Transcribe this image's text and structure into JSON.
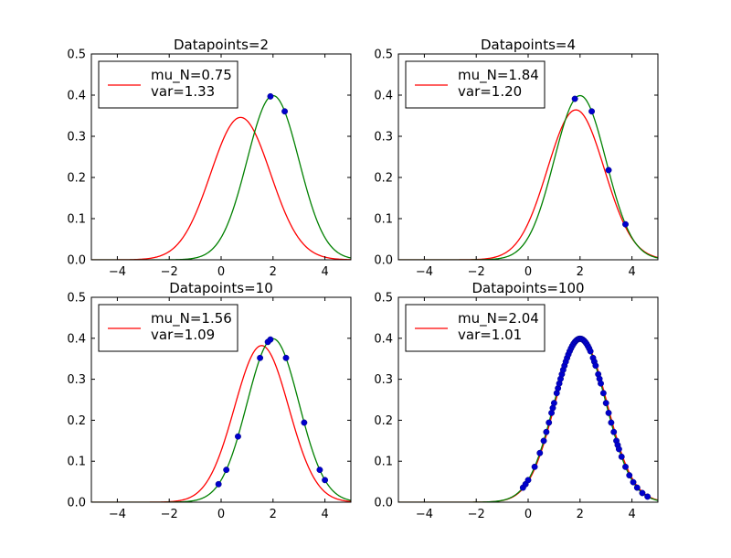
{
  "chart_data": [
    {
      "type": "line",
      "title": "Datapoints=2",
      "xlim": [
        -5,
        5
      ],
      "ylim": [
        0,
        0.5
      ],
      "xticks": [
        -4,
        -2,
        0,
        2,
        4
      ],
      "yticks": [
        0.0,
        0.1,
        0.2,
        0.3,
        0.4,
        0.5
      ],
      "xtick_labels": [
        "−4",
        "−2",
        "0",
        "2",
        "4"
      ],
      "ytick_labels": [
        "0.0",
        "0.1",
        "0.2",
        "0.3",
        "0.4",
        "0.5"
      ],
      "legend": {
        "placement": "top-left",
        "lines": [
          "mu_N=0.75",
          "var=1.33"
        ]
      },
      "series": [
        {
          "color": "#ff0000",
          "kind": "gaussian",
          "mean": 0.75,
          "var": 1.33
        },
        {
          "color": "#008000",
          "kind": "gaussian",
          "mean": 2.0,
          "var": 1.0
        }
      ],
      "points": {
        "color": "#0000cc",
        "x": [
          1.9,
          2.45
        ]
      }
    },
    {
      "type": "line",
      "title": "Datapoints=4",
      "xlim": [
        -5,
        5
      ],
      "ylim": [
        0,
        0.5
      ],
      "xticks": [
        -4,
        -2,
        0,
        2,
        4
      ],
      "yticks": [
        0.0,
        0.1,
        0.2,
        0.3,
        0.4,
        0.5
      ],
      "xtick_labels": [
        "−4",
        "−2",
        "0",
        "2",
        "4"
      ],
      "ytick_labels": [
        "0.0",
        "0.1",
        "0.2",
        "0.3",
        "0.4",
        "0.5"
      ],
      "legend": {
        "placement": "top-left",
        "lines": [
          "mu_N=1.84",
          "var=1.20"
        ]
      },
      "series": [
        {
          "color": "#ff0000",
          "kind": "gaussian",
          "mean": 1.84,
          "var": 1.2
        },
        {
          "color": "#008000",
          "kind": "gaussian",
          "mean": 2.0,
          "var": 1.0
        }
      ],
      "points": {
        "color": "#0000cc",
        "x": [
          1.8,
          2.45,
          3.1,
          3.75
        ]
      }
    },
    {
      "type": "line",
      "title": "Datapoints=10",
      "xlim": [
        -5,
        5
      ],
      "ylim": [
        0,
        0.5
      ],
      "xticks": [
        -4,
        -2,
        0,
        2,
        4
      ],
      "yticks": [
        0.0,
        0.1,
        0.2,
        0.3,
        0.4,
        0.5
      ],
      "xtick_labels": [
        "−4",
        "−2",
        "0",
        "2",
        "4"
      ],
      "ytick_labels": [
        "0.0",
        "0.1",
        "0.2",
        "0.3",
        "0.4",
        "0.5"
      ],
      "legend": {
        "placement": "top-left",
        "lines": [
          "mu_N=1.56",
          "var=1.09"
        ]
      },
      "series": [
        {
          "color": "#ff0000",
          "kind": "gaussian",
          "mean": 1.56,
          "var": 1.09
        },
        {
          "color": "#008000",
          "kind": "gaussian",
          "mean": 2.0,
          "var": 1.0
        }
      ],
      "points": {
        "color": "#0000cc",
        "x": [
          -0.1,
          0.2,
          0.65,
          1.5,
          1.8,
          1.9,
          2.5,
          3.2,
          3.8,
          4.0
        ]
      }
    },
    {
      "type": "line",
      "title": "Datapoints=100",
      "xlim": [
        -5,
        5
      ],
      "ylim": [
        0,
        0.5
      ],
      "xticks": [
        -4,
        -2,
        0,
        2,
        4
      ],
      "yticks": [
        0.0,
        0.1,
        0.2,
        0.3,
        0.4,
        0.5
      ],
      "xtick_labels": [
        "−4",
        "−2",
        "0",
        "2",
        "4"
      ],
      "ytick_labels": [
        "0.0",
        "0.1",
        "0.2",
        "0.3",
        "0.4",
        "0.5"
      ],
      "legend": {
        "placement": "top-left",
        "lines": [
          "mu_N=2.04",
          "var=1.01"
        ]
      },
      "series": [
        {
          "color": "#ff0000",
          "kind": "gaussian",
          "mean": 2.04,
          "var": 1.01
        },
        {
          "color": "#008000",
          "kind": "gaussian",
          "mean": 2.0,
          "var": 1.0
        }
      ],
      "points": {
        "color": "#0000cc",
        "x": [
          -0.2,
          -0.1,
          0.0,
          0.25,
          0.45,
          0.6,
          0.7,
          0.8,
          0.9,
          0.95,
          1.0,
          1.1,
          1.15,
          1.2,
          1.25,
          1.3,
          1.35,
          1.4,
          1.45,
          1.5,
          1.55,
          1.6,
          1.65,
          1.7,
          1.75,
          1.8,
          1.85,
          1.9,
          1.95,
          2.0,
          2.05,
          2.1,
          2.15,
          2.2,
          2.25,
          2.3,
          2.35,
          2.4,
          2.5,
          2.55,
          2.6,
          2.7,
          2.75,
          2.8,
          2.9,
          3.0,
          3.1,
          3.2,
          3.3,
          3.4,
          3.45,
          3.5,
          3.6,
          3.75,
          3.9,
          4.05,
          4.2,
          4.4,
          4.6
        ]
      }
    }
  ]
}
